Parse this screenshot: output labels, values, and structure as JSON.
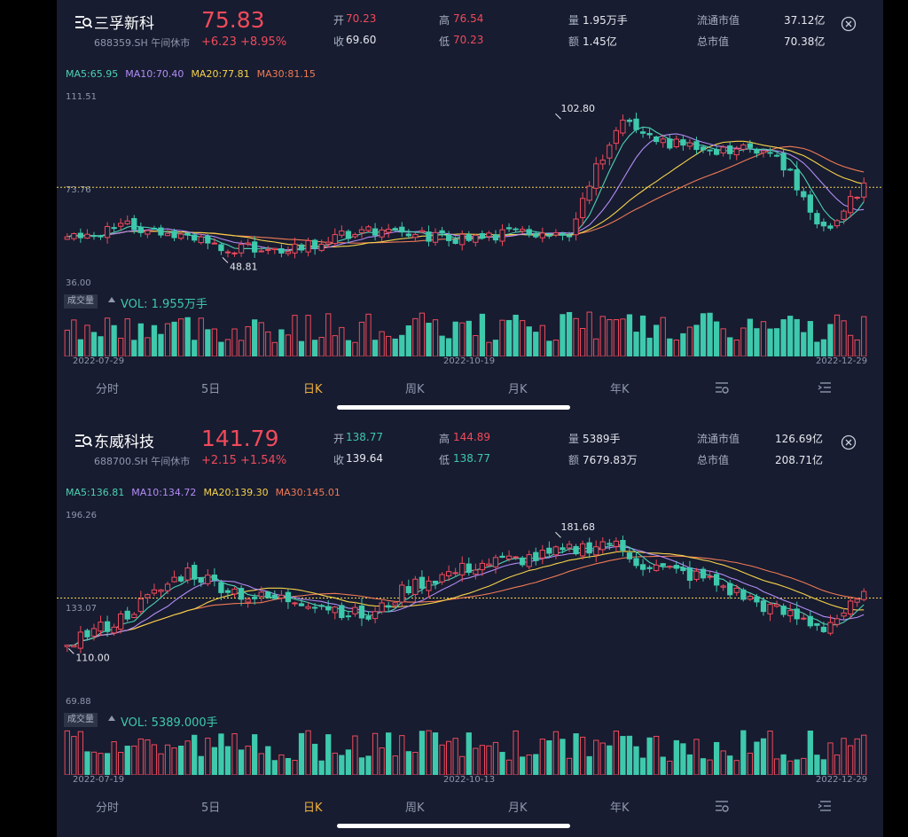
{
  "colors": {
    "up": "#f04a5b",
    "down": "#3ec9ac",
    "bg": "#171c30",
    "ma5": "#4fd1b3",
    "ma10": "#b28cf5",
    "ma20": "#f7d24b",
    "ma30": "#f07a55"
  },
  "tabs": [
    "分时",
    "5日",
    "日K",
    "周K",
    "月K",
    "年K"
  ],
  "active_tab": "日K",
  "stocks": [
    {
      "name": "三孚新科",
      "code": "688359.SH",
      "status": "午间休市",
      "price": "75.83",
      "change": "+6.23",
      "change_pct": "+8.95%",
      "open_label": "开",
      "open": "70.23",
      "close_label": "收",
      "prev_close": "69.60",
      "high_label": "高",
      "high": "76.54",
      "low_label": "低",
      "low": "70.23",
      "volume_label": "量",
      "volume": "1.95万手",
      "amount_label": "额",
      "amount": "1.45亿",
      "float_cap_label": "流通市值",
      "float_cap": "37.12亿",
      "total_cap_label": "总市值",
      "total_cap": "70.38亿",
      "ma": {
        "ma5": "MA5:65.95",
        "ma10": "MA10:70.40",
        "ma20": "MA20:77.81",
        "ma30": "MA30:81.15"
      },
      "vol_badge": "成交量",
      "vol_text": "VOL: 1.955万手",
      "dates": [
        "2022-07-29",
        "2022-10-19",
        "2022-12-29"
      ],
      "chart_data": {
        "type": "candlestick",
        "y_axis_labels": [
          "111.51",
          "73.76",
          "36.00"
        ],
        "ylim": [
          36.0,
          111.51
        ],
        "current_price": 75.83,
        "max_label": "102.80",
        "min_label": "48.81",
        "max_value": 102.8,
        "min_value": 48.81
      }
    },
    {
      "name": "东威科技",
      "code": "688700.SH",
      "status": "午间休市",
      "price": "141.79",
      "change": "+2.15",
      "change_pct": "+1.54%",
      "open_label": "开",
      "open": "138.77",
      "close_label": "收",
      "prev_close": "139.64",
      "high_label": "高",
      "high": "144.89",
      "low_label": "低",
      "low": "138.77",
      "volume_label": "量",
      "volume": "5389手",
      "amount_label": "额",
      "amount": "7679.83万",
      "float_cap_label": "流通市值",
      "float_cap": "126.69亿",
      "total_cap_label": "总市值",
      "total_cap": "208.71亿",
      "ma": {
        "ma5": "MA5:136.81",
        "ma10": "MA10:134.72",
        "ma20": "MA20:139.30",
        "ma30": "MA30:145.01"
      },
      "vol_badge": "成交量",
      "vol_text": "VOL: 5389.000手",
      "dates": [
        "2022-07-19",
        "2022-10-13",
        "2022-12-29"
      ],
      "chart_data": {
        "type": "candlestick",
        "y_axis_labels": [
          "196.26",
          "133.07",
          "69.88"
        ],
        "ylim": [
          69.88,
          196.26
        ],
        "current_price": 141.79,
        "max_label": "181.68",
        "min_label": "110.00",
        "max_value": 181.68,
        "min_value": 110.0
      }
    }
  ]
}
